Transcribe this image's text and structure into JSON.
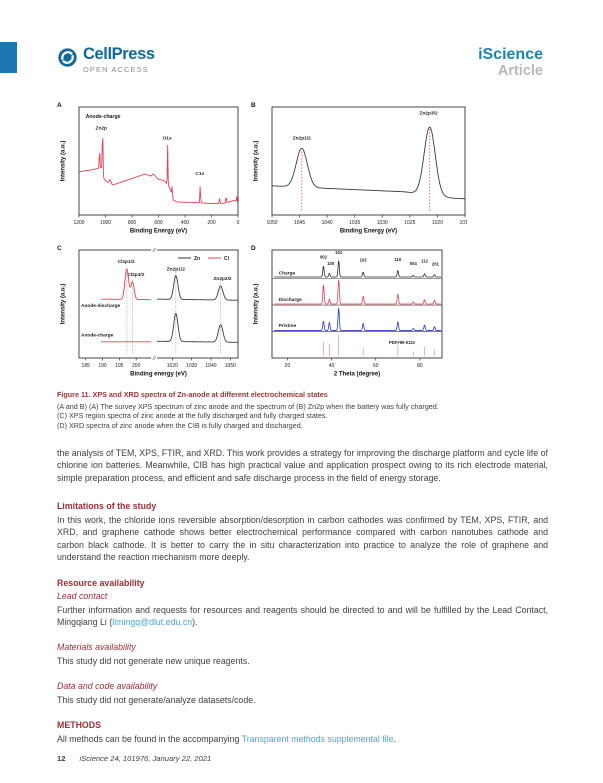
{
  "header": {
    "cellpress": "CellPress",
    "open_access": "OPEN ACCESS",
    "journal": "iScience",
    "article_type": "Article"
  },
  "colors": {
    "brand_blue": "#11689f",
    "accent_bar_blue": "#1b78b2",
    "journal_blue": "#1a84ad",
    "heading_red": "#9c2e35",
    "link_blue": "#49a7d7",
    "curve_red": "#e8414f",
    "curve_black": "#3a3a3a",
    "curve_blue": "#2c35cf",
    "reference_pink": "#f09aa0"
  },
  "figure": {
    "caption_title": "Figure 11.  XPS and XRD spectra of Zn-anode at different electrochemical states",
    "caption_lines": [
      "(A and B) (A) The survey XPS spectrum of zinc anode and the spectrum of (B) Zn2p when the battery was fully charged.",
      "(C) XPS region spectra of zinc anode at the fully discharged and fully charged states.",
      "(D) XRD spectra of zinc anode when the CIB is fully charged and discharged."
    ]
  },
  "body": {
    "para1": "the analysis of TEM, XPS, FTIR, and XRD. This work provides a strategy for improving the discharge platform and cycle life of chlorine ion batteries. Meanwhile, CIB has high practical value and application prospect owing to its rich electrode material, simple preparation process, and efficient and safe discharge process in the field of energy storage.",
    "limitations_heading": "Limitations of the study",
    "limitations_para": "In this work, the chloride ions reversible absorption/desorption in carbon cathodes was confirmed by TEM, XPS, FTIR, and XRD, and graphene cathode shows better electrochemical performance compared with carbon nanotubes cathode and carbon black cathode. It is better to carry the in situ characterization into practice to analyze the role of graphene and understand the reaction mechanism more deeply.",
    "resource_heading": "Resource availability",
    "lead_contact_heading": "Lead contact",
    "lead_contact_text_before": "Further information and requests for resources and reagents should be directed to and will be fulfilled by the Lead Contact, Mingqiang Li (",
    "lead_contact_email": "limingq@dlut.edu.cn",
    "lead_contact_text_after": ").",
    "materials_heading": "Materials availability",
    "materials_text": "This study did not generate new unique reagents.",
    "data_heading": "Data and code availability",
    "data_text": "This study did not generate/analyze datasets/code.",
    "methods_heading": "METHODS",
    "methods_text_before": "All methods can be found in the accompanying ",
    "methods_link": "Transparent methods supplemental file",
    "methods_text_after": "."
  },
  "footer": {
    "page_number": "12",
    "journal_line": "iScience 24, 101976, January 22, 2021"
  },
  "chart_data": [
    {
      "id": "A",
      "panel": "A",
      "type": "line",
      "title": "Survey XPS spectrum of zinc anode (fully charged)",
      "xlabel": "Binding Energy (eV)",
      "ylabel": "Intensity (a.u.)",
      "x_ticks": [
        1200,
        1000,
        800,
        600,
        400,
        200,
        0
      ],
      "x_axis": {
        "segments": [
          {
            "min": 1200,
            "max": 0,
            "start": 0,
            "end": 1
          }
        ]
      },
      "series": [
        {
          "name": "Anode-charge survey",
          "color": "#e8414f",
          "width": 0.9,
          "range": [
            1200,
            0
          ],
          "baseline": [
            [
              0,
              0.12
            ],
            [
              30,
              0.135
            ],
            [
              100,
              0.11
            ],
            [
              200,
              0.105
            ],
            [
              300,
              0.115
            ],
            [
              460,
              0.12
            ],
            [
              490,
              0.14
            ],
            [
              505,
              0.22
            ],
            [
              520,
              0.26
            ],
            [
              545,
              0.3
            ],
            [
              560,
              0.32
            ],
            [
              600,
              0.33
            ],
            [
              640,
              0.38
            ],
            [
              660,
              0.36
            ],
            [
              700,
              0.38
            ],
            [
              940,
              0.28
            ],
            [
              950,
              0.28
            ],
            [
              965,
              0.33
            ],
            [
              980,
              0.3
            ],
            [
              1010,
              0.33
            ],
            [
              1030,
              0.44
            ],
            [
              1060,
              0.43
            ],
            [
              1100,
              0.42
            ],
            [
              1200,
              0.4
            ]
          ],
          "peaks": [
            {
              "c": 1045,
              "h": 0.2,
              "w": 2.2
            },
            {
              "c": 1022,
              "h": 0.49,
              "w": 2.2
            },
            {
              "c": 531,
              "h": 0.37,
              "w": 2.2
            },
            {
              "c": 497,
              "h": 0.1,
              "w": 2.0
            },
            {
              "c": 285,
              "h": 0.17,
              "w": 2.2
            },
            {
              "c": 140,
              "h": 0.06,
              "w": 2.0
            },
            {
              "c": 90,
              "h": 0.08,
              "w": 2.0
            },
            {
              "c": 10,
              "h": 0.05,
              "w": 2.0
            }
          ]
        }
      ],
      "annotations": [
        {
          "x": 1150,
          "y": 0.9,
          "text": "Anode-charge",
          "anchor": "start",
          "size": 5.2
        },
        {
          "x": 1032,
          "y": 0.79,
          "text": "Zn2p"
        },
        {
          "x": 535,
          "y": 0.7,
          "text": "O1s"
        },
        {
          "x": 288,
          "y": 0.37,
          "text": "C1s"
        }
      ]
    },
    {
      "id": "B",
      "panel": "B",
      "type": "line",
      "title": "Zn2p XPS spectrum (fully charged)",
      "xlabel": "Binding Energy (eV)",
      "ylabel": "Intensity (a.u.)",
      "x_ticks": [
        1050,
        1045,
        1040,
        1035,
        1030,
        1025,
        1020,
        1015
      ],
      "x_axis": {
        "segments": [
          {
            "min": 1050,
            "max": 1015,
            "start": 0,
            "end": 1
          }
        ]
      },
      "series": [
        {
          "name": "Zn2p",
          "color": "#3a3a3a",
          "width": 0.9,
          "range": [
            1050,
            1015
          ],
          "baseline": [
            [
              1015,
              0.15
            ],
            [
              1017,
              0.155
            ],
            [
              1026,
              0.215
            ],
            [
              1035,
              0.235
            ],
            [
              1050,
              0.27
            ]
          ],
          "peaks": [
            {
              "c": 1044.6,
              "h": 0.36,
              "w": 1.0
            },
            {
              "c": 1021.4,
              "h": 0.63,
              "w": 1.0
            }
          ]
        }
      ],
      "guides": [
        {
          "x": 1044.6,
          "y0": 0.04,
          "y1": 0.6,
          "color": "#e85560",
          "dash": "1.6,1.6"
        },
        {
          "x": 1021.4,
          "y0": 0.04,
          "y1": 0.8,
          "color": "#e85560",
          "dash": "1.6,1.6"
        }
      ],
      "annotations": [
        {
          "x": 1044.6,
          "y": 0.7,
          "text": "Zn2p1/2"
        },
        {
          "x": 1021.6,
          "y": 0.93,
          "text": "Zn2p3/2"
        }
      ]
    },
    {
      "id": "C",
      "panel": "C",
      "type": "line",
      "title": "Cl2p and Zn2p XPS region spectra, discharged vs charged",
      "xlabel": "Binding energy (eV)",
      "ylabel": "Intensity (a.u.)",
      "x_ticks": [
        185,
        190,
        195,
        200,
        1020,
        1030,
        1040,
        1050
      ],
      "x_axis": {
        "segments": [
          {
            "min": 183,
            "max": 204.5,
            "start": 0,
            "end": 0.455
          },
          {
            "min": 1012,
            "max": 1054,
            "start": 0.49,
            "end": 1
          }
        ],
        "breaks": [
          0.4725
        ]
      },
      "legend": {
        "entries": [
          {
            "label": "Zn",
            "color": "#3a3a3a"
          },
          {
            "label": "Cl",
            "color": "#e8414f"
          }
        ]
      },
      "series": [
        {
          "name": "Anode-discharge Cl2p",
          "color": "#e8414f",
          "width": 0.9,
          "range": [
            189.5,
            204.5
          ],
          "baseline": [
            [
              189.5,
              0.545
            ],
            [
              204.5,
              0.54
            ]
          ],
          "peaks": [
            {
              "c": 197.2,
              "h": 0.28,
              "w": 0.55
            },
            {
              "c": 198.9,
              "h": 0.16,
              "w": 0.5
            }
          ]
        },
        {
          "name": "Anode-discharge Zn2p",
          "color": "#3a3a3a",
          "width": 0.9,
          "range": [
            1012,
            1054
          ],
          "baseline": [
            [
              1012,
              0.545
            ],
            [
              1054,
              0.535
            ]
          ],
          "peaks": [
            {
              "c": 1021.8,
              "h": 0.22,
              "w": 1.1
            },
            {
              "c": 1045,
              "h": 0.13,
              "w": 1.2
            }
          ]
        },
        {
          "name": "Anode-charge Cl2p",
          "color": "#e8414f",
          "width": 0.9,
          "range": [
            189.5,
            204.5
          ],
          "baseline": [
            [
              189.5,
              0.15
            ],
            [
              204.5,
              0.15
            ]
          ],
          "peaks": []
        },
        {
          "name": "Anode-charge Zn2p",
          "color": "#3a3a3a",
          "width": 0.9,
          "range": [
            1012,
            1054
          ],
          "baseline": [
            [
              1012,
              0.155
            ],
            [
              1054,
              0.145
            ]
          ],
          "peaks": [
            {
              "c": 1021.8,
              "h": 0.26,
              "w": 1.1
            },
            {
              "c": 1045,
              "h": 0.16,
              "w": 1.2
            }
          ]
        }
      ],
      "guides": [
        {
          "x": 197.2,
          "y0": 0.04,
          "y1": 0.84,
          "color": "#9a9a9a",
          "dash": "1,1.6"
        },
        {
          "x": 198.9,
          "y0": 0.04,
          "y1": 0.74,
          "color": "#9a9a9a",
          "dash": "1,1.6"
        },
        {
          "x": 1021.8,
          "y0": 0.04,
          "y1": 0.8,
          "color": "#9a9a9a",
          "dash": "1,1.6"
        },
        {
          "x": 1045,
          "y0": 0.04,
          "y1": 0.72,
          "color": "#9a9a9a",
          "dash": "1,1.6"
        }
      ],
      "annotations": [
        {
          "x": 197.0,
          "y": 0.88,
          "text": "Cl2p1/2"
        },
        {
          "x": 199.9,
          "y": 0.76,
          "text": "Cl2p3/2"
        },
        {
          "x": 1021.8,
          "y": 0.81,
          "text": "Zn2p1/2"
        },
        {
          "x": 1046,
          "y": 0.72,
          "text": "Zn2p3/2"
        },
        {
          "x": 183.6,
          "y": 0.47,
          "text": "Anode-discharge",
          "anchor": "start"
        },
        {
          "x": 183.6,
          "y": 0.2,
          "text": "Anode-charge",
          "anchor": "start"
        }
      ]
    },
    {
      "id": "D",
      "panel": "D",
      "type": "line",
      "title": "XRD spectra of zinc anode",
      "xlabel": "2 Theta (degree)",
      "ylabel": "Intensity (a.u.)",
      "x_ticks": [
        20,
        40,
        60,
        80
      ],
      "x_axis": {
        "segments": [
          {
            "min": 13,
            "max": 90,
            "start": 0,
            "end": 1
          }
        ]
      },
      "dividers": [
        {
          "y": 0.735
        },
        {
          "y": 0.49
        },
        {
          "y": 0.245
        }
      ],
      "peak_positions_2theta": [
        36.3,
        39.0,
        43.2,
        54.3,
        70.0,
        77.0,
        82.1,
        86.6
      ],
      "peak_hkl": [
        "002",
        "100",
        "101",
        "102",
        "110",
        "004",
        "112",
        "201"
      ],
      "series": [
        {
          "name": "Charge",
          "color": "#2e2e2e",
          "width": 0.8,
          "n": 700,
          "range": [
            14,
            89.5
          ],
          "baseline": [
            [
              14,
              0.75
            ],
            [
              89.5,
              0.75
            ]
          ],
          "peaks": [
            {
              "c": 36.3,
              "h": 0.1,
              "w": 0.3
            },
            {
              "c": 39.0,
              "h": 0.035,
              "w": 0.3
            },
            {
              "c": 43.2,
              "h": 0.15,
              "w": 0.3
            },
            {
              "c": 54.3,
              "h": 0.045,
              "w": 0.3
            },
            {
              "c": 70.0,
              "h": 0.06,
              "w": 0.3
            },
            {
              "c": 77.0,
              "h": 0.015,
              "w": 0.3
            },
            {
              "c": 82.1,
              "h": 0.03,
              "w": 0.3
            },
            {
              "c": 86.6,
              "h": 0.02,
              "w": 0.3
            }
          ]
        },
        {
          "name": "Discharge",
          "color": "#e8414f",
          "width": 0.8,
          "n": 700,
          "range": [
            14,
            89.5
          ],
          "baseline": [
            [
              14,
              0.5
            ],
            [
              89.5,
              0.5
            ]
          ],
          "peaks": [
            {
              "c": 36.3,
              "h": 0.175,
              "w": 0.3
            },
            {
              "c": 39.0,
              "h": 0.045,
              "w": 0.3
            },
            {
              "c": 43.2,
              "h": 0.22,
              "w": 0.3
            },
            {
              "c": 54.3,
              "h": 0.07,
              "w": 0.3
            },
            {
              "c": 70.0,
              "h": 0.09,
              "w": 0.3
            },
            {
              "c": 77.0,
              "h": 0.02,
              "w": 0.3
            },
            {
              "c": 82.1,
              "h": 0.04,
              "w": 0.3
            },
            {
              "c": 86.6,
              "h": 0.035,
              "w": 0.3
            }
          ]
        },
        {
          "name": "Pristine",
          "color": "#2c35cf",
          "width": 0.8,
          "n": 700,
          "range": [
            14,
            89.5
          ],
          "baseline": [
            [
              14,
              0.255
            ],
            [
              89.5,
              0.255
            ]
          ],
          "peaks": [
            {
              "c": 36.3,
              "h": 0.085,
              "w": 0.3
            },
            {
              "c": 39.0,
              "h": 0.075,
              "w": 0.3
            },
            {
              "c": 43.2,
              "h": 0.205,
              "w": 0.3
            },
            {
              "c": 54.3,
              "h": 0.065,
              "w": 0.3
            },
            {
              "c": 70.0,
              "h": 0.08,
              "w": 0.3
            },
            {
              "c": 77.0,
              "h": 0.018,
              "w": 0.3
            },
            {
              "c": 82.1,
              "h": 0.05,
              "w": 0.3
            },
            {
              "c": 86.6,
              "h": 0.035,
              "w": 0.3
            }
          ]
        },
        {
          "name": "PDF#99-0110",
          "type": "sticks",
          "color": "#f09aa0",
          "width": 0.8,
          "y0": 0.02,
          "sticks": [
            [
              36.3,
              0.13
            ],
            [
              39.0,
              0.1
            ],
            [
              43.2,
              0.195
            ],
            [
              54.3,
              0.075
            ],
            [
              70.0,
              0.1
            ],
            [
              77.0,
              0.04
            ],
            [
              82.1,
              0.085
            ],
            [
              86.6,
              0.06
            ]
          ]
        }
      ],
      "annotations": [
        {
          "x": 16,
          "y": 0.775,
          "text": "Charge",
          "anchor": "start"
        },
        {
          "x": 16,
          "y": 0.53,
          "text": "Discharge",
          "anchor": "start"
        },
        {
          "x": 16,
          "y": 0.285,
          "text": "Pristine",
          "anchor": "start"
        },
        {
          "x": 66,
          "y": 0.13,
          "text": "PDF#99-0110",
          "anchor": "start",
          "size": 4.2
        },
        {
          "x": 36.3,
          "y": 0.92,
          "text": "002",
          "size": 4.2
        },
        {
          "x": 39.6,
          "y": 0.862,
          "text": "100",
          "size": 4.2
        },
        {
          "x": 43.2,
          "y": 0.965,
          "text": "101",
          "size": 4.2
        },
        {
          "x": 54.3,
          "y": 0.895,
          "text": "102",
          "size": 4.2
        },
        {
          "x": 70.0,
          "y": 0.9,
          "text": "110",
          "size": 4.2
        },
        {
          "x": 77.0,
          "y": 0.862,
          "text": "004",
          "size": 4.2
        },
        {
          "x": 82.1,
          "y": 0.885,
          "text": "112",
          "size": 4.2
        },
        {
          "x": 87.0,
          "y": 0.855,
          "text": "201",
          "size": 4.2
        }
      ]
    }
  ]
}
